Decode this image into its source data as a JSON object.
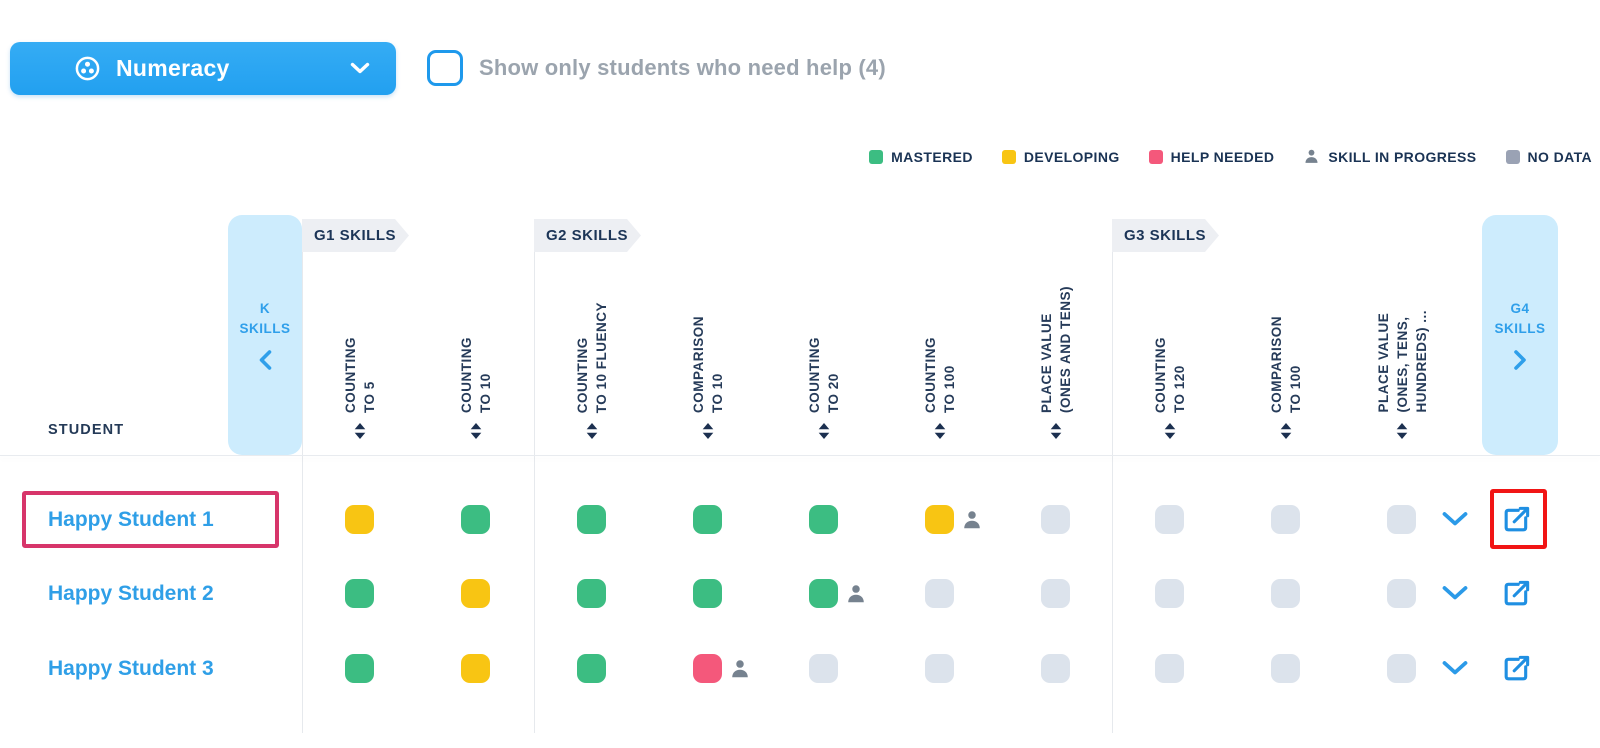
{
  "subject_selector": {
    "label": "Numeracy"
  },
  "filter": {
    "label": "Show only students who need help (4)",
    "checked": false
  },
  "legend": {
    "items": [
      {
        "label": "MASTERED",
        "swatch": "square",
        "color": "#3cbd82"
      },
      {
        "label": "DEVELOPING",
        "swatch": "square",
        "color": "#f8c513"
      },
      {
        "label": "HELP NEEDED",
        "swatch": "square",
        "color": "#f4587b"
      },
      {
        "label": "SKILL IN PROGRESS",
        "swatch": "person",
        "color": "#76828f"
      },
      {
        "label": "NO DATA",
        "swatch": "square",
        "color": "#9aa2b4"
      }
    ]
  },
  "status_colors": {
    "mastered": "#3cbd82",
    "developing": "#f8c513",
    "help_needed": "#f4587b",
    "no_data": "#dce3ec",
    "in_progress_icon": "#76828f"
  },
  "accent": {
    "blue": "#2f9fe7",
    "annotation_pink": "#d7356a",
    "annotation_red": "#f11515"
  },
  "table": {
    "student_column_header": "STUDENT",
    "collapsed_left": {
      "label": "K SKILLS",
      "chevron": "left"
    },
    "collapsed_right": {
      "label": "G4 SKILLS",
      "chevron": "right"
    },
    "groups": [
      {
        "label": "G1 SKILLS",
        "skills": [
          {
            "lines": [
              "COUNTING",
              "TO 5"
            ]
          },
          {
            "lines": [
              "COUNTING",
              "TO 10"
            ]
          }
        ]
      },
      {
        "label": "G2 SKILLS",
        "skills": [
          {
            "lines": [
              "COUNTING",
              "TO 10 FLUENCY"
            ]
          },
          {
            "lines": [
              "COMPARISON",
              "TO 10"
            ]
          },
          {
            "lines": [
              "COUNTING",
              "TO 20"
            ]
          },
          {
            "lines": [
              "COUNTING",
              "TO 100"
            ]
          },
          {
            "lines": [
              "PLACE VALUE",
              "(ONES AND TENS)"
            ]
          }
        ]
      },
      {
        "label": "G3 SKILLS",
        "skills": [
          {
            "lines": [
              "COUNTING",
              "TO 120"
            ]
          },
          {
            "lines": [
              "COMPARISON",
              "TO 100"
            ]
          },
          {
            "lines": [
              "PLACE VALUE",
              "(ONES, TENS,",
              "HUNDREDS) ..."
            ]
          }
        ]
      }
    ],
    "rows": [
      {
        "name": "Happy Student 1",
        "name_highlighted": true,
        "open_highlighted": true,
        "cells": [
          {
            "status": "developing"
          },
          {
            "status": "mastered"
          },
          {
            "status": "mastered"
          },
          {
            "status": "mastered"
          },
          {
            "status": "mastered"
          },
          {
            "status": "developing",
            "in_progress": true
          },
          {
            "status": "no_data"
          },
          {
            "status": "no_data"
          },
          {
            "status": "no_data"
          },
          {
            "status": "no_data"
          }
        ]
      },
      {
        "name": "Happy Student 2",
        "name_highlighted": false,
        "open_highlighted": false,
        "cells": [
          {
            "status": "mastered"
          },
          {
            "status": "developing"
          },
          {
            "status": "mastered"
          },
          {
            "status": "mastered"
          },
          {
            "status": "mastered",
            "in_progress": true
          },
          {
            "status": "no_data"
          },
          {
            "status": "no_data"
          },
          {
            "status": "no_data"
          },
          {
            "status": "no_data"
          },
          {
            "status": "no_data"
          }
        ]
      },
      {
        "name": "Happy Student 3",
        "name_highlighted": false,
        "open_highlighted": false,
        "cells": [
          {
            "status": "mastered"
          },
          {
            "status": "developing"
          },
          {
            "status": "mastered"
          },
          {
            "status": "help_needed",
            "in_progress": true
          },
          {
            "status": "no_data"
          },
          {
            "status": "no_data"
          },
          {
            "status": "no_data"
          },
          {
            "status": "no_data"
          },
          {
            "status": "no_data"
          },
          {
            "status": "no_data"
          }
        ]
      }
    ]
  }
}
